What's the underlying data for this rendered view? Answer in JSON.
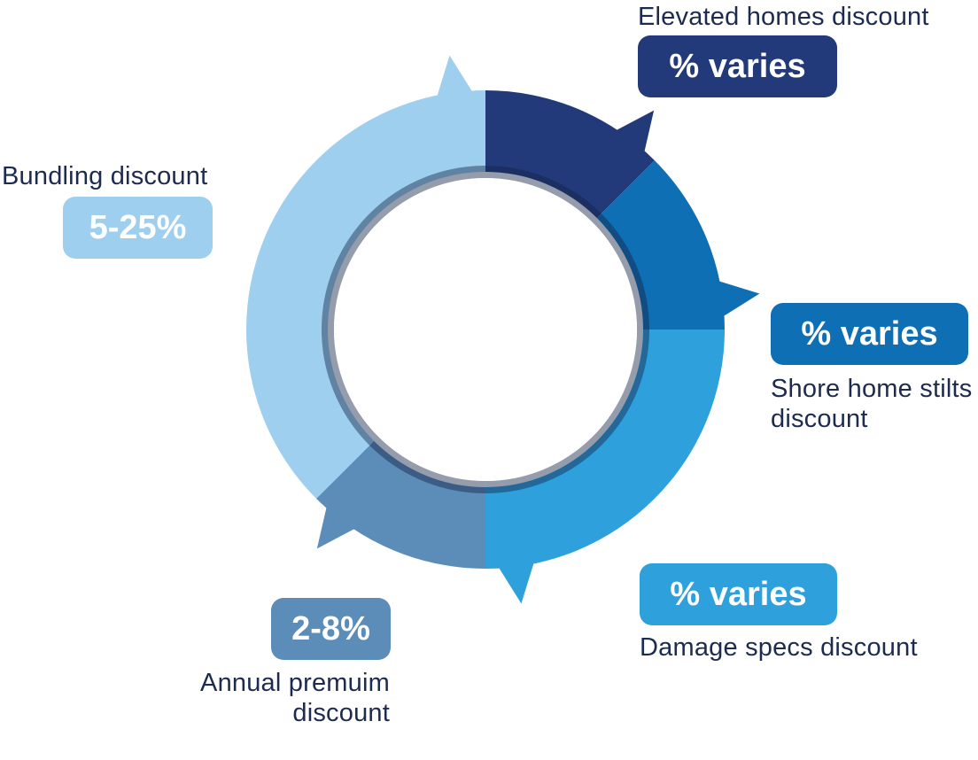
{
  "chart_data": {
    "type": "pie",
    "variant": "donut",
    "segments": [
      {
        "label": "Elevated homes discount",
        "value_text": "% varies",
        "share": 0.125,
        "color": "#233a7a"
      },
      {
        "label": "Shore home stilts discount",
        "value_text": "% varies",
        "share": 0.125,
        "color": "#0f6fb5"
      },
      {
        "label": "Damage specs discount",
        "value_text": "% varies",
        "share": 0.25,
        "color": "#2ea0dc"
      },
      {
        "label": "Annual premuim discount",
        "value_text": "2-8%",
        "share": 0.125,
        "color": "#5b8db8"
      },
      {
        "label": "Bundling discount",
        "value_text": "5-25%",
        "share": 0.375,
        "color": "#9ecfee"
      }
    ]
  },
  "labels": {
    "elevated": {
      "name": "Elevated homes discount",
      "value": "% varies"
    },
    "stilts": {
      "name_line1": "Shore home stilts",
      "name_line2": "discount",
      "value": "% varies"
    },
    "damage": {
      "name": "Damage specs discount",
      "value": "% varies"
    },
    "annual": {
      "name_line1": "Annual premuim",
      "name_line2": "discount",
      "value": "2-8%"
    },
    "bundling": {
      "name": "Bundling discount",
      "value": "5-25%"
    }
  }
}
